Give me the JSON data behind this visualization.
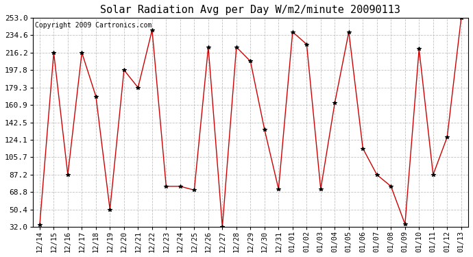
{
  "title": "Solar Radiation Avg per Day W/m2/minute 20090113",
  "copyright": "Copyright 2009 Cartronics.com",
  "dates": [
    "12/14",
    "12/15",
    "12/16",
    "12/17",
    "12/18",
    "12/19",
    "12/20",
    "12/21",
    "12/22",
    "12/23",
    "12/24",
    "12/25",
    "12/26",
    "12/27",
    "12/28",
    "12/29",
    "12/30",
    "12/31",
    "01/01",
    "01/02",
    "01/03",
    "01/04",
    "01/05",
    "01/06",
    "01/07",
    "01/08",
    "01/09",
    "01/10",
    "01/11",
    "01/12",
    "01/13"
  ],
  "values": [
    34.0,
    216.2,
    87.2,
    216.2,
    170.0,
    50.4,
    197.8,
    179.3,
    240.0,
    75.0,
    75.0,
    71.0,
    222.0,
    32.0,
    222.0,
    207.0,
    135.0,
    72.0,
    238.0,
    225.0,
    72.0,
    163.0,
    238.0,
    115.0,
    87.2,
    75.0,
    35.0,
    220.0,
    87.2,
    127.0,
    253.0
  ],
  "yticks": [
    32.0,
    50.4,
    68.8,
    87.2,
    105.7,
    124.1,
    142.5,
    160.9,
    179.3,
    197.8,
    216.2,
    234.6,
    253.0
  ],
  "ylim_min": 32.0,
  "ylim_max": 253.0,
  "line_color": "#cc0000",
  "marker": "*",
  "marker_color": "#000000",
  "bg_color": "#ffffff",
  "plot_bg_color": "#ffffff",
  "grid_color": "#bbbbbb",
  "title_fontsize": 11,
  "copyright_fontsize": 7,
  "tick_fontsize": 7.5,
  "ytick_fontsize": 8
}
